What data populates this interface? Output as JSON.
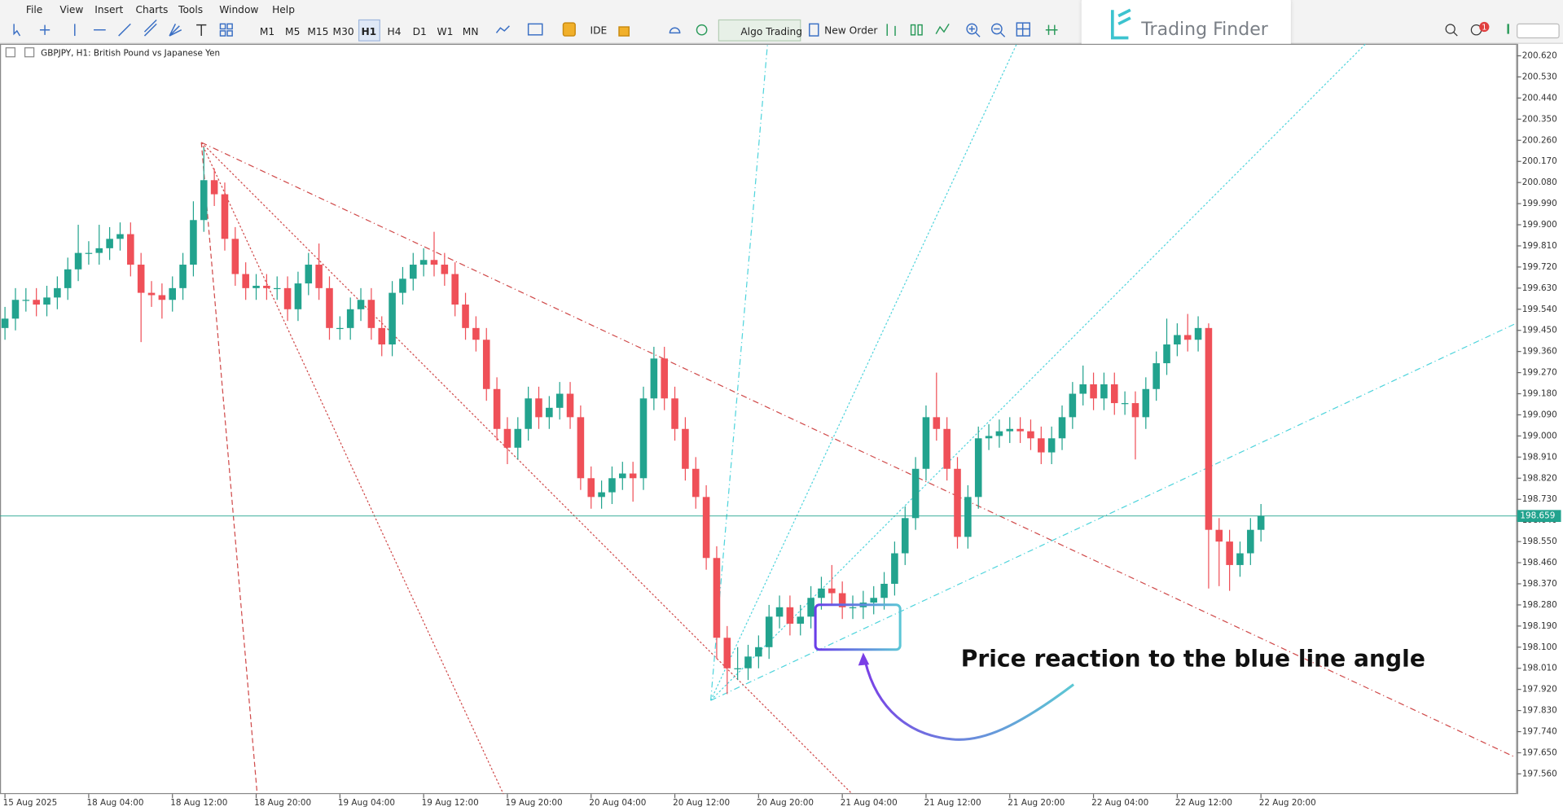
{
  "menu": [
    "File",
    "View",
    "Insert",
    "Charts",
    "Tools",
    "Window",
    "Help"
  ],
  "timeframes": [
    "M1",
    "M5",
    "M15",
    "M30",
    "H1",
    "H4",
    "D1",
    "W1",
    "MN"
  ],
  "active_timeframe": "H1",
  "toolbar": {
    "ide": "IDE",
    "algo": "Algo Trading",
    "new_order": "New Order"
  },
  "notification": "1",
  "logo": "Trading Finder",
  "chart_data": {
    "type": "candlestick",
    "label": "GBPJPY, H1: British Pound vs Japanese Yen",
    "annotation": "Price reaction to the blue line angle",
    "up_color": "#22a38e",
    "down_color": "#ef5058",
    "grid": false,
    "current_price": 198.659,
    "current_price_color": "#22a38e",
    "ylim": [
      197.474,
      200.671
    ],
    "yticks": [
      {
        "value": 200.62,
        "label": "200.620"
      },
      {
        "value": 200.53,
        "label": "200.530"
      },
      {
        "value": 200.44,
        "label": "200.440"
      },
      {
        "value": 200.35,
        "label": "200.350"
      },
      {
        "value": 200.26,
        "label": "200.260"
      },
      {
        "value": 200.17,
        "label": "200.170"
      },
      {
        "value": 200.08,
        "label": "200.080"
      },
      {
        "value": 199.99,
        "label": "199.990"
      },
      {
        "value": 199.9,
        "label": "199.900"
      },
      {
        "value": 199.81,
        "label": "199.810"
      },
      {
        "value": 199.72,
        "label": "199.720"
      },
      {
        "value": 199.63,
        "label": "199.630"
      },
      {
        "value": 199.54,
        "label": "199.540"
      },
      {
        "value": 199.45,
        "label": "199.450"
      },
      {
        "value": 199.36,
        "label": "199.360"
      },
      {
        "value": 199.27,
        "label": "199.270"
      },
      {
        "value": 199.18,
        "label": "199.180"
      },
      {
        "value": 199.09,
        "label": "199.090"
      },
      {
        "value": 199,
        "label": "199.000"
      },
      {
        "value": 198.91,
        "label": "198.910"
      },
      {
        "value": 198.82,
        "label": "198.820"
      },
      {
        "value": 198.73,
        "label": "198.730"
      },
      {
        "value": 198.64,
        "label": "198.640"
      },
      {
        "value": 198.55,
        "label": "198.550"
      },
      {
        "value": 198.46,
        "label": "198.460"
      },
      {
        "value": 198.37,
        "label": "198.370"
      },
      {
        "value": 198.28,
        "label": "198.280"
      },
      {
        "value": 198.19,
        "label": "198.190"
      },
      {
        "value": 198.1,
        "label": "198.100"
      },
      {
        "value": 198.01,
        "label": "198.010"
      },
      {
        "value": 197.92,
        "label": "197.920"
      },
      {
        "value": 197.83,
        "label": "197.830"
      },
      {
        "value": 197.74,
        "label": "197.740"
      },
      {
        "value": 197.65,
        "label": "197.650"
      },
      {
        "value": 197.56,
        "label": "197.560"
      }
    ],
    "categories": [
      "15 Aug 2025",
      null,
      null,
      null,
      null,
      null,
      null,
      null,
      "18 Aug 04:00",
      null,
      null,
      null,
      null,
      null,
      null,
      null,
      "18 Aug 12:00",
      null,
      null,
      null,
      null,
      null,
      null,
      null,
      "18 Aug 20:00",
      null,
      null,
      null,
      null,
      null,
      null,
      null,
      "19 Aug 04:00",
      null,
      null,
      null,
      null,
      null,
      null,
      null,
      "19 Aug 12:00",
      null,
      null,
      null,
      null,
      null,
      null,
      null,
      "19 Aug 20:00",
      null,
      null,
      null,
      null,
      null,
      null,
      null,
      "20 Aug 04:00",
      null,
      null,
      null,
      null,
      null,
      null,
      null,
      "20 Aug 12:00",
      null,
      null,
      null,
      null,
      null,
      null,
      null,
      "20 Aug 20:00",
      null,
      null,
      null,
      null,
      null,
      null,
      null,
      "21 Aug 04:00",
      null,
      null,
      null,
      null,
      null,
      null,
      null,
      "21 Aug 12:00",
      null,
      null,
      null,
      null,
      null,
      null,
      null,
      "21 Aug 20:00",
      null,
      null,
      null,
      null,
      null,
      null,
      null,
      "22 Aug 04:00",
      null,
      null,
      null,
      null,
      null,
      null,
      null,
      "22 Aug 12:00",
      null,
      null,
      null,
      null,
      null,
      null,
      null,
      "22 Aug 20:00"
    ],
    "open": [
      199.46,
      199.5,
      199.58,
      199.58,
      199.56,
      199.59,
      199.63,
      199.71,
      199.78,
      199.78,
      199.8,
      199.84,
      199.86,
      199.73,
      199.61,
      199.6,
      199.58,
      199.63,
      199.73,
      199.92,
      200.09,
      200.03,
      199.84,
      199.69,
      199.63,
      199.64,
      199.63,
      199.63,
      199.54,
      199.65,
      199.73,
      199.63,
      199.46,
      199.46,
      199.54,
      199.58,
      199.46,
      199.39,
      199.61,
      199.67,
      199.73,
      199.75,
      199.73,
      199.69,
      199.56,
      199.46,
      199.41,
      199.2,
      199.03,
      198.95,
      199.03,
      199.16,
      199.08,
      199.12,
      199.18,
      199.08,
      198.82,
      198.74,
      198.76,
      198.82,
      198.84,
      198.82,
      199.16,
      199.33,
      199.16,
      199.03,
      198.86,
      198.74,
      198.48,
      198.14,
      198.01,
      198.01,
      198.06,
      198.1,
      198.23,
      198.27,
      198.2,
      198.23,
      198.31,
      198.35,
      198.33,
      198.27,
      198.27,
      198.29,
      198.31,
      198.37,
      198.5,
      198.65,
      198.86,
      199.08,
      199.03,
      198.86,
      198.57,
      198.74,
      198.99,
      199.0,
      199.02,
      199.03,
      199.02,
      198.99,
      198.93,
      198.99,
      199.08,
      199.18,
      199.22,
      199.16,
      199.22,
      199.14,
      199.14,
      199.08,
      199.2,
      199.31,
      199.39,
      199.43,
      199.41,
      199.46,
      198.6,
      198.55,
      198.45,
      198.5,
      198.6
    ],
    "high": [
      199.55,
      199.63,
      199.63,
      199.63,
      199.64,
      199.68,
      199.76,
      199.9,
      199.83,
      199.9,
      199.89,
      199.91,
      199.91,
      199.78,
      199.66,
      199.65,
      199.68,
      199.78,
      200.0,
      200.23,
      200.14,
      200.08,
      199.89,
      199.74,
      199.69,
      199.69,
      199.68,
      199.68,
      199.7,
      199.78,
      199.82,
      199.68,
      199.51,
      199.59,
      199.63,
      199.63,
      199.51,
      199.66,
      199.72,
      199.78,
      199.8,
      199.87,
      199.78,
      199.74,
      199.61,
      199.51,
      199.46,
      199.25,
      199.08,
      199.08,
      199.21,
      199.21,
      199.17,
      199.23,
      199.23,
      199.13,
      198.87,
      198.81,
      198.87,
      198.89,
      198.89,
      199.21,
      199.38,
      199.38,
      199.21,
      199.08,
      198.91,
      198.79,
      198.53,
      198.19,
      198.1,
      198.11,
      198.15,
      198.28,
      198.32,
      198.32,
      198.28,
      198.36,
      198.4,
      198.45,
      198.38,
      198.32,
      198.34,
      198.36,
      198.42,
      198.55,
      198.7,
      198.91,
      199.13,
      199.27,
      199.08,
      198.91,
      198.79,
      199.04,
      199.05,
      199.07,
      199.08,
      199.08,
      199.07,
      199.04,
      199.04,
      199.13,
      199.23,
      199.3,
      199.27,
      199.27,
      199.27,
      199.19,
      199.19,
      199.25,
      199.36,
      199.5,
      199.48,
      199.52,
      199.51,
      199.48,
      198.65,
      198.6,
      198.55,
      198.65,
      198.71
    ],
    "low": [
      199.41,
      199.45,
      199.53,
      199.51,
      199.51,
      199.54,
      199.58,
      199.66,
      199.73,
      199.73,
      199.75,
      199.79,
      199.68,
      199.4,
      199.55,
      199.5,
      199.53,
      199.58,
      199.68,
      199.87,
      199.98,
      199.79,
      199.64,
      199.58,
      199.58,
      199.58,
      199.58,
      199.49,
      199.49,
      199.6,
      199.58,
      199.41,
      199.41,
      199.41,
      199.49,
      199.41,
      199.34,
      199.34,
      199.56,
      199.62,
      199.68,
      199.68,
      199.64,
      199.51,
      199.41,
      199.36,
      199.15,
      198.98,
      198.88,
      198.9,
      198.98,
      199.03,
      199.03,
      199.07,
      199.03,
      198.77,
      198.69,
      198.69,
      198.71,
      198.77,
      198.72,
      198.77,
      199.11,
      199.11,
      198.98,
      198.81,
      198.69,
      198.43,
      198.05,
      197.9,
      197.96,
      197.96,
      198.01,
      198.05,
      198.18,
      198.15,
      198.15,
      198.18,
      198.26,
      198.28,
      198.22,
      198.22,
      198.22,
      198.24,
      198.26,
      198.32,
      198.45,
      198.6,
      198.81,
      198.98,
      198.81,
      198.52,
      198.52,
      198.69,
      198.94,
      198.95,
      198.97,
      198.97,
      198.94,
      198.88,
      198.88,
      198.94,
      199.03,
      199.13,
      199.11,
      199.11,
      199.09,
      199.09,
      198.9,
      199.03,
      199.15,
      199.26,
      199.34,
      199.36,
      199.36,
      198.35,
      198.36,
      198.34,
      198.4,
      198.45,
      198.55
    ],
    "close": [
      199.5,
      199.58,
      199.58,
      199.56,
      199.59,
      199.63,
      199.71,
      199.78,
      199.78,
      199.8,
      199.84,
      199.86,
      199.73,
      199.61,
      199.6,
      199.58,
      199.63,
      199.73,
      199.92,
      200.09,
      200.03,
      199.84,
      199.69,
      199.63,
      199.64,
      199.63,
      199.63,
      199.54,
      199.65,
      199.73,
      199.63,
      199.46,
      199.46,
      199.54,
      199.58,
      199.46,
      199.39,
      199.61,
      199.67,
      199.73,
      199.75,
      199.73,
      199.69,
      199.56,
      199.46,
      199.41,
      199.2,
      199.03,
      198.95,
      199.03,
      199.16,
      199.08,
      199.12,
      199.18,
      199.08,
      198.82,
      198.74,
      198.76,
      198.82,
      198.84,
      198.82,
      199.16,
      199.33,
      199.16,
      199.03,
      198.86,
      198.74,
      198.48,
      198.14,
      198.01,
      198.01,
      198.06,
      198.1,
      198.23,
      198.27,
      198.2,
      198.23,
      198.31,
      198.35,
      198.33,
      198.27,
      198.27,
      198.29,
      198.31,
      198.37,
      198.5,
      198.65,
      198.86,
      199.08,
      199.03,
      198.86,
      198.57,
      198.74,
      198.99,
      199.0,
      199.02,
      199.03,
      199.02,
      198.99,
      198.93,
      198.99,
      199.08,
      199.18,
      199.22,
      199.16,
      199.22,
      199.14,
      199.14,
      199.08,
      199.2,
      199.31,
      199.39,
      199.43,
      199.41,
      199.46,
      198.6,
      198.55,
      198.45,
      198.5,
      198.6,
      198.66
    ]
  }
}
